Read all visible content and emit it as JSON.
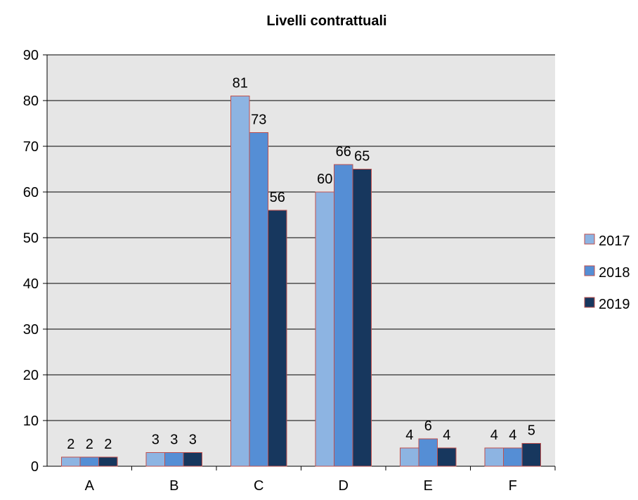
{
  "chart_data": {
    "type": "bar",
    "title": "Livelli contrattuali",
    "xlabel": "",
    "ylabel": "",
    "categories": [
      "A",
      "B",
      "C",
      "D",
      "E",
      "F"
    ],
    "ylim": [
      0,
      90
    ],
    "yticks": [
      0,
      10,
      20,
      30,
      40,
      50,
      60,
      70,
      80,
      90
    ],
    "grid": true,
    "legend_position": "right",
    "series": [
      {
        "name": "2017",
        "values": [
          2,
          3,
          81,
          60,
          4,
          4
        ],
        "color": "#8DB4E2"
      },
      {
        "name": "2018",
        "values": [
          2,
          3,
          73,
          66,
          6,
          4
        ],
        "color": "#558ED5"
      },
      {
        "name": "2019",
        "values": [
          2,
          3,
          56,
          65,
          4,
          5
        ],
        "color": "#17375E"
      }
    ],
    "bar_outline_color": "#C0504D",
    "plot_background": "#E6E6E6"
  }
}
